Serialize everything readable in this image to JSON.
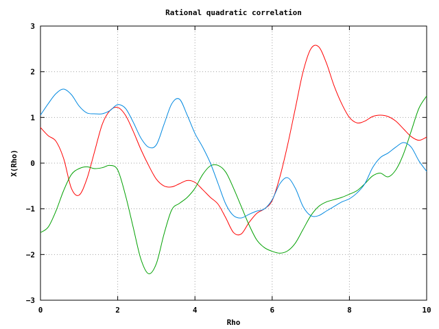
{
  "chart_data": {
    "type": "line",
    "title": "Rational quadratic correlation",
    "xlabel": "Rho",
    "ylabel": "X(Rho)",
    "xlim": [
      0,
      10
    ],
    "ylim": [
      -3,
      3
    ],
    "xticks": [
      0,
      2,
      4,
      6,
      8,
      10
    ],
    "yticks": [
      -3,
      -2,
      -1,
      0,
      1,
      2,
      3
    ],
    "grid": true,
    "legend": "none",
    "series": [
      {
        "color": "#ff0000",
        "x": [
          0,
          0.2,
          0.4,
          0.6,
          0.8,
          1.0,
          1.2,
          1.4,
          1.6,
          1.8,
          2.0,
          2.2,
          2.4,
          2.6,
          2.8,
          3.0,
          3.2,
          3.4,
          3.6,
          3.8,
          4.0,
          4.2,
          4.4,
          4.6,
          4.8,
          5.0,
          5.2,
          5.4,
          5.6,
          5.8,
          6.0,
          6.2,
          6.4,
          6.6,
          6.8,
          7.0,
          7.2,
          7.4,
          7.6,
          7.8,
          8.0,
          8.2,
          8.4,
          8.6,
          8.8,
          9.0,
          9.2,
          9.4,
          9.6,
          9.8,
          10.0
        ],
        "y": [
          0.78,
          0.6,
          0.48,
          0.1,
          -0.55,
          -0.7,
          -0.35,
          0.25,
          0.85,
          1.15,
          1.22,
          1.05,
          0.7,
          0.3,
          -0.05,
          -0.35,
          -0.5,
          -0.52,
          -0.45,
          -0.38,
          -0.42,
          -0.58,
          -0.75,
          -0.9,
          -1.2,
          -1.52,
          -1.55,
          -1.3,
          -1.1,
          -1.0,
          -0.82,
          -0.3,
          0.4,
          1.2,
          2.0,
          2.5,
          2.55,
          2.2,
          1.7,
          1.3,
          1.0,
          0.88,
          0.92,
          1.02,
          1.05,
          1.02,
          0.92,
          0.75,
          0.58,
          0.5,
          0.57
        ]
      },
      {
        "color": "#00a000",
        "x": [
          0,
          0.2,
          0.4,
          0.6,
          0.8,
          1.0,
          1.2,
          1.4,
          1.6,
          1.8,
          2.0,
          2.2,
          2.4,
          2.6,
          2.8,
          3.0,
          3.2,
          3.4,
          3.6,
          3.8,
          4.0,
          4.2,
          4.4,
          4.6,
          4.8,
          5.0,
          5.2,
          5.4,
          5.6,
          5.8,
          6.0,
          6.2,
          6.4,
          6.6,
          6.8,
          7.0,
          7.2,
          7.4,
          7.6,
          7.8,
          8.0,
          8.2,
          8.4,
          8.6,
          8.8,
          9.0,
          9.2,
          9.4,
          9.6,
          9.8,
          10.0
        ],
        "y": [
          -1.52,
          -1.4,
          -1.05,
          -0.6,
          -0.25,
          -0.12,
          -0.08,
          -0.12,
          -0.1,
          -0.05,
          -0.15,
          -0.7,
          -1.4,
          -2.1,
          -2.42,
          -2.2,
          -1.55,
          -1.02,
          -0.88,
          -0.75,
          -0.55,
          -0.25,
          -0.06,
          -0.05,
          -0.2,
          -0.55,
          -0.95,
          -1.35,
          -1.68,
          -1.85,
          -1.93,
          -1.97,
          -1.92,
          -1.75,
          -1.45,
          -1.15,
          -0.95,
          -0.85,
          -0.8,
          -0.75,
          -0.68,
          -0.6,
          -0.45,
          -0.28,
          -0.22,
          -0.3,
          -0.15,
          0.2,
          0.7,
          1.2,
          1.47
        ]
      },
      {
        "color": "#0088e0",
        "x": [
          0,
          0.2,
          0.4,
          0.6,
          0.8,
          1.0,
          1.2,
          1.4,
          1.6,
          1.8,
          2.0,
          2.2,
          2.4,
          2.6,
          2.8,
          3.0,
          3.2,
          3.4,
          3.6,
          3.8,
          4.0,
          4.2,
          4.4,
          4.6,
          4.8,
          5.0,
          5.2,
          5.4,
          5.6,
          5.8,
          6.0,
          6.2,
          6.4,
          6.6,
          6.8,
          7.0,
          7.2,
          7.4,
          7.6,
          7.8,
          8.0,
          8.2,
          8.4,
          8.6,
          8.8,
          9.0,
          9.2,
          9.4,
          9.6,
          9.8,
          10.0
        ],
        "y": [
          1.05,
          1.3,
          1.52,
          1.62,
          1.5,
          1.25,
          1.1,
          1.08,
          1.08,
          1.15,
          1.28,
          1.2,
          0.9,
          0.55,
          0.35,
          0.4,
          0.85,
          1.3,
          1.4,
          1.05,
          0.65,
          0.35,
          0.0,
          -0.45,
          -0.9,
          -1.15,
          -1.2,
          -1.12,
          -1.05,
          -1.0,
          -0.8,
          -0.45,
          -0.32,
          -0.55,
          -0.95,
          -1.15,
          -1.15,
          -1.05,
          -0.95,
          -0.85,
          -0.78,
          -0.65,
          -0.45,
          -0.1,
          0.12,
          0.22,
          0.35,
          0.45,
          0.35,
          0.05,
          -0.18
        ]
      }
    ]
  }
}
